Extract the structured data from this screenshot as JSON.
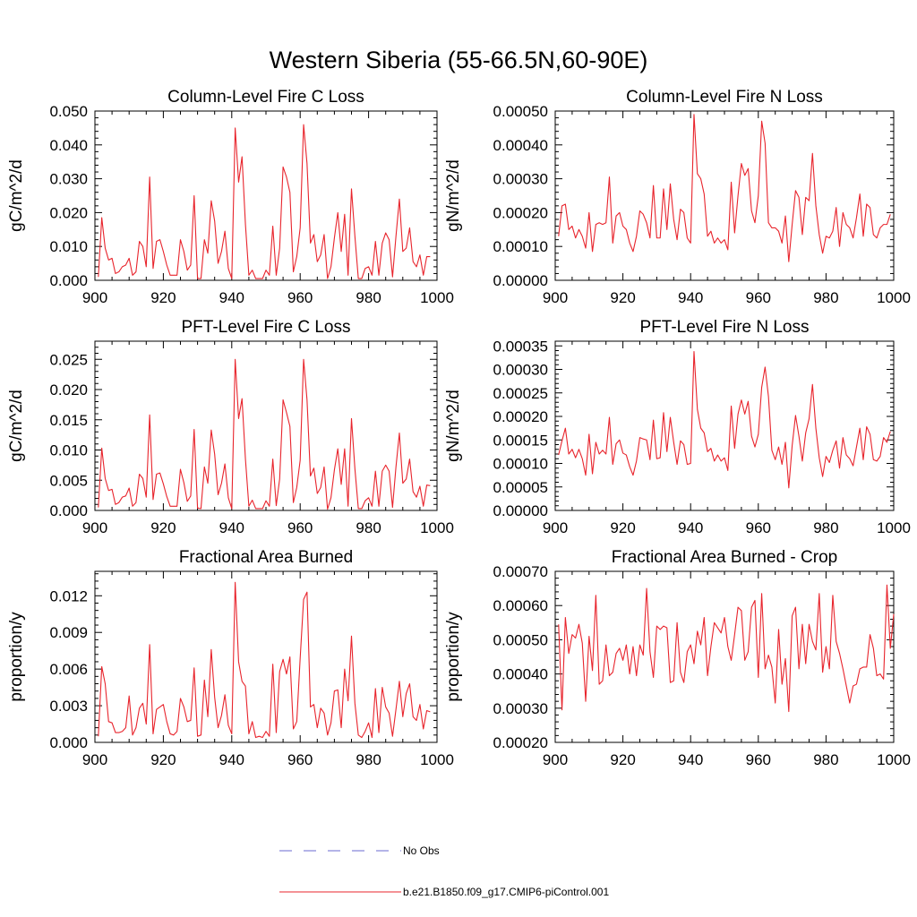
{
  "figure": {
    "title": "Western Siberia (55-66.5N,60-90E)"
  },
  "legend": {
    "items": [
      {
        "label": "No Obs",
        "color": "#6a6ad0",
        "dash": true
      },
      {
        "label": "b.e21.B1850.f09_g17.CMIP6-piControl.001",
        "color": "#e8242c",
        "dash": false
      }
    ]
  },
  "chart_data": [
    {
      "type": "line",
      "title": "Column-Level Fire C Loss",
      "ylabel": "gC/m^2/d",
      "xlim": [
        900,
        1000
      ],
      "ylim": [
        0,
        0.05
      ],
      "xticks": [
        900,
        920,
        940,
        960,
        980,
        1000
      ],
      "yticks": [
        "0.000",
        "0.010",
        "0.020",
        "0.030",
        "0.040",
        "0.050"
      ],
      "yticks_values": [
        0,
        0.01,
        0.02,
        0.03,
        0.04,
        0.05
      ],
      "x0": 901,
      "series": [
        {
          "name": "b.e21.B1850.f09_g17.CMIP6-piControl.001",
          "color": "#e8242c",
          "values": [
            0.001,
            0.0185,
            0.0095,
            0.006,
            0.0065,
            0.002,
            0.0025,
            0.004,
            0.0045,
            0.0065,
            0.0015,
            0.0025,
            0.0115,
            0.01,
            0.004,
            0.0305,
            0.0035,
            0.0115,
            0.012,
            0.0085,
            0.0045,
            0.0015,
            0.0015,
            0.0015,
            0.012,
            0.0085,
            0.003,
            0.0045,
            0.025,
            0.0005,
            0.0005,
            0.012,
            0.008,
            0.0235,
            0.0175,
            0.005,
            0.0085,
            0.0145,
            0.0035,
            0.0005,
            0.045,
            0.029,
            0.0365,
            0.0165,
            0.0015,
            0.003,
            0.0005,
            0.0005,
            0.0005,
            0.003,
            0.0015,
            0.016,
            0.0015,
            0.0095,
            0.0335,
            0.0305,
            0.026,
            0.0025,
            0.007,
            0.0155,
            0.046,
            0.0345,
            0.011,
            0.0135,
            0.0055,
            0.0075,
            0.0135,
            0.0005,
            0.004,
            0.0125,
            0.02,
            0.0085,
            0.0195,
            0.0015,
            0.027,
            0.013,
            0.0005,
            0.0005,
            0.0035,
            0.004,
            0.0015,
            0.0115,
            0.0015,
            0.011,
            0.014,
            0.012,
            0.001,
            0.013,
            0.024,
            0.0085,
            0.0095,
            0.0155,
            0.0055,
            0.004,
            0.0075,
            0.0015,
            0.007,
            0.007
          ]
        }
      ]
    },
    {
      "type": "line",
      "title": "Column-Level Fire N Loss",
      "ylabel": "gN/m^2/d",
      "xlim": [
        900,
        1000
      ],
      "ylim": [
        0,
        0.0005
      ],
      "xticks": [
        900,
        920,
        940,
        960,
        980,
        1000
      ],
      "yticks": [
        "0.00000",
        "0.00010",
        "0.00020",
        "0.00030",
        "0.00040",
        "0.00050"
      ],
      "yticks_values": [
        0,
        0.0001,
        0.0002,
        0.0003,
        0.0004,
        0.0005
      ],
      "x0": 901,
      "series": [
        {
          "name": "b.e21.B1850.f09_g17.CMIP6-piControl.001",
          "color": "#e8242c",
          "values": [
            0.00013,
            0.00022,
            0.000225,
            0.00015,
            0.00016,
            0.000125,
            0.00015,
            0.00013,
            9.5e-05,
            0.0002,
            8.5e-05,
            0.000165,
            0.00017,
            0.000165,
            0.00017,
            0.000305,
            0.00011,
            0.00019,
            0.0002,
            0.00016,
            0.00015,
            0.00011,
            8.5e-05,
            0.00013,
            0.000205,
            0.000195,
            0.00017,
            0.000125,
            0.00028,
            0.000125,
            0.000125,
            0.00027,
            0.00015,
            0.000285,
            0.00018,
            0.00012,
            0.00021,
            0.0002,
            0.000125,
            0.00011,
            0.00049,
            0.000315,
            0.0003,
            0.000255,
            0.00013,
            0.000145,
            0.00011,
            0.000125,
            0.00011,
            0.00012,
            9e-05,
            0.00029,
            0.00014,
            0.00025,
            0.000345,
            0.00031,
            0.00033,
            0.000205,
            0.00017,
            0.00025,
            0.00047,
            0.000405,
            0.00017,
            0.000155,
            0.000155,
            0.000145,
            0.00011,
            0.00019,
            5.5e-05,
            0.000165,
            0.000265,
            0.000245,
            0.000135,
            0.000245,
            0.000235,
            0.000375,
            0.00022,
            0.000135,
            8e-05,
            0.00013,
            0.000125,
            0.000145,
            0.000215,
            0.0001,
            0.0002,
            0.000165,
            0.000155,
            0.000125,
            0.000185,
            0.000255,
            0.00013,
            0.000225,
            0.000215,
            0.000135,
            0.000125,
            0.000155,
            0.000165,
            0.000165,
            0.000195
          ]
        }
      ]
    },
    {
      "type": "line",
      "title": "PFT-Level Fire C Loss",
      "ylabel": "gC/m^2/d",
      "xlim": [
        900,
        1000
      ],
      "ylim": [
        0,
        0.028
      ],
      "xticks": [
        900,
        920,
        940,
        960,
        980,
        1000
      ],
      "yticks": [
        "0.000",
        "0.005",
        "0.010",
        "0.015",
        "0.020",
        "0.025"
      ],
      "yticks_values": [
        0,
        0.005,
        0.01,
        0.015,
        0.02,
        0.025
      ],
      "x0": 901,
      "series": [
        {
          "name": "b.e21.B1850.f09_g17.CMIP6-piControl.001",
          "color": "#e8242c",
          "values": [
            0.0005,
            0.0103,
            0.0053,
            0.0033,
            0.0035,
            0.001,
            0.0013,
            0.0022,
            0.0024,
            0.0037,
            0.0007,
            0.0013,
            0.006,
            0.0053,
            0.0022,
            0.0158,
            0.0018,
            0.006,
            0.0062,
            0.0044,
            0.0023,
            0.0007,
            0.0007,
            0.0007,
            0.0068,
            0.0046,
            0.0015,
            0.0024,
            0.0134,
            0.0004,
            0.0003,
            0.0072,
            0.0045,
            0.0133,
            0.0093,
            0.0026,
            0.0045,
            0.0077,
            0.0021,
            0.0003,
            0.025,
            0.0152,
            0.0185,
            0.0085,
            0.0007,
            0.0017,
            0.0003,
            0.0003,
            0.0003,
            0.0016,
            0.0007,
            0.0085,
            0.0008,
            0.0052,
            0.0183,
            0.0162,
            0.0139,
            0.0013,
            0.0038,
            0.0083,
            0.025,
            0.0183,
            0.0057,
            0.007,
            0.0028,
            0.0038,
            0.0072,
            0.0002,
            0.0021,
            0.0067,
            0.0102,
            0.0043,
            0.0102,
            0.0007,
            0.0152,
            0.0069,
            0.0003,
            0.0003,
            0.0016,
            0.0021,
            0.0007,
            0.0065,
            0.0007,
            0.0065,
            0.0075,
            0.0065,
            0.0005,
            0.0072,
            0.0128,
            0.0045,
            0.0052,
            0.0085,
            0.0031,
            0.0022,
            0.004,
            0.0007,
            0.0042,
            0.0041
          ]
        }
      ]
    },
    {
      "type": "line",
      "title": "PFT-Level Fire N Loss",
      "ylabel": "gN/m^2/d",
      "xlim": [
        900,
        1000
      ],
      "ylim": [
        0,
        0.00036
      ],
      "xticks": [
        900,
        920,
        940,
        960,
        980,
        1000
      ],
      "yticks": [
        "0.00000",
        "0.00005",
        "0.00010",
        "0.00015",
        "0.00020",
        "0.00025",
        "0.00030",
        "0.00035"
      ],
      "yticks_values": [
        0,
        5e-05,
        0.0001,
        0.00015,
        0.0002,
        0.00025,
        0.0003,
        0.00035
      ],
      "x0": 901,
      "series": [
        {
          "name": "b.e21.B1850.f09_g17.CMIP6-piControl.001",
          "color": "#e8242c",
          "values": [
            0.000118,
            0.000148,
            0.000175,
            0.00012,
            0.00013,
            0.000112,
            0.00013,
            0.00011,
            7.5e-05,
            0.000162,
            7.8e-05,
            0.000145,
            0.00012,
            0.000128,
            0.00012,
            0.000198,
            9.8e-05,
            0.000142,
            0.00015,
            0.000122,
            0.000118,
            9.3e-05,
            7.5e-05,
            0.000105,
            0.000155,
            0.000152,
            0.00015,
            0.000108,
            0.000192,
            0.00011,
            0.000112,
            0.000208,
            0.000125,
            0.000198,
            0.000145,
            9.8e-05,
            0.000148,
            0.00014,
            9.8e-05,
            0.0001,
            0.000338,
            0.000215,
            0.000175,
            0.000165,
            0.000125,
            0.000132,
            0.000105,
            0.000118,
            0.000105,
            0.000112,
            8.5e-05,
            0.000222,
            0.000132,
            0.000205,
            0.000235,
            0.000205,
            0.000232,
            0.000158,
            0.000135,
            0.000162,
            0.000262,
            0.000305,
            0.000242,
            0.000128,
            0.000108,
            0.000135,
            9.8e-05,
            0.000145,
            4.8e-05,
            0.000138,
            0.000202,
            0.000158,
            0.000105,
            0.000165,
            0.000195,
            0.000268,
            0.000175,
            0.000112,
            7.2e-05,
            0.000115,
            0.000102,
            0.000128,
            0.000148,
            9e-05,
            0.000155,
            0.000118,
            0.00011,
            9.5e-05,
            0.000135,
            0.000175,
            0.000108,
            0.000178,
            0.000162,
            0.000108,
            0.000105,
            0.000115,
            0.000155,
            0.000145,
            0.000168
          ]
        }
      ]
    },
    {
      "type": "line",
      "title": "Fractional Area Burned",
      "ylabel": "proportion/y",
      "xlim": [
        900,
        1000
      ],
      "ylim": [
        0,
        0.014
      ],
      "xticks": [
        900,
        920,
        940,
        960,
        980,
        1000
      ],
      "yticks": [
        "0.000",
        "0.003",
        "0.006",
        "0.009",
        "0.012"
      ],
      "yticks_values": [
        0,
        0.003,
        0.006,
        0.009,
        0.012
      ],
      "x0": 901,
      "series": [
        {
          "name": "b.e21.B1850.f09_g17.CMIP6-piControl.001",
          "color": "#e8242c",
          "values": [
            0.0005,
            0.0062,
            0.0048,
            0.0017,
            0.0016,
            0.0008,
            0.0008,
            0.0009,
            0.0012,
            0.0038,
            0.0006,
            0.0012,
            0.0028,
            0.0032,
            0.0015,
            0.008,
            0.0007,
            0.0027,
            0.0029,
            0.0031,
            0.0017,
            0.0007,
            0.0006,
            0.0009,
            0.0036,
            0.0029,
            0.0017,
            0.0018,
            0.0061,
            0.0005,
            0.0006,
            0.0051,
            0.0021,
            0.0076,
            0.0037,
            0.0012,
            0.0022,
            0.0039,
            0.0014,
            0.0007,
            0.0131,
            0.0066,
            0.005,
            0.0046,
            0.0007,
            0.0017,
            0.0004,
            0.0005,
            0.0004,
            0.0009,
            0.0005,
            0.0064,
            0.0008,
            0.0058,
            0.0068,
            0.0056,
            0.007,
            0.0011,
            0.0017,
            0.0069,
            0.0117,
            0.0123,
            0.0029,
            0.0031,
            0.0012,
            0.0028,
            0.0024,
            0.0006,
            0.0016,
            0.0042,
            0.0043,
            0.0012,
            0.006,
            0.0034,
            0.0087,
            0.0032,
            0.0006,
            0.0004,
            0.0009,
            0.0016,
            0.0004,
            0.0044,
            0.0008,
            0.0045,
            0.0029,
            0.0024,
            0.0005,
            0.0027,
            0.005,
            0.0021,
            0.004,
            0.0048,
            0.0021,
            0.0018,
            0.0031,
            0.0011,
            0.0026,
            0.0025
          ]
        }
      ]
    },
    {
      "type": "line",
      "title": "Fractional Area Burned - Crop",
      "ylabel": "proportion/y",
      "xlim": [
        900,
        1000
      ],
      "ylim": [
        0.0002,
        0.0007
      ],
      "xticks": [
        900,
        920,
        940,
        960,
        980,
        1000
      ],
      "yticks": [
        "0.00020",
        "0.00030",
        "0.00040",
        "0.00050",
        "0.00060",
        "0.00070"
      ],
      "yticks_values": [
        0.0002,
        0.0003,
        0.0004,
        0.0005,
        0.0006,
        0.0007
      ],
      "x0": 901,
      "series": [
        {
          "name": "b.e21.B1850.f09_g17.CMIP6-piControl.001",
          "color": "#e8242c",
          "values": [
            0.000545,
            0.000295,
            0.000565,
            0.00046,
            0.000515,
            0.000505,
            0.000545,
            0.00049,
            0.00032,
            0.00051,
            0.00041,
            0.00063,
            0.00037,
            0.00038,
            0.000485,
            0.000395,
            0.000405,
            0.00046,
            0.000475,
            0.00044,
            0.000485,
            0.0004,
            0.00048,
            0.000395,
            0.000485,
            0.000455,
            0.00065,
            0.000465,
            0.00039,
            0.00054,
            0.00053,
            0.00054,
            0.000535,
            0.000375,
            0.00038,
            0.00055,
            0.000405,
            0.000375,
            0.000465,
            0.000485,
            0.00043,
            0.000525,
            0.000485,
            0.000565,
            0.000395,
            0.00048,
            0.00055,
            0.000535,
            0.00052,
            0.000565,
            0.00048,
            0.00044,
            0.000515,
            0.000595,
            0.000585,
            0.00044,
            0.000465,
            0.000595,
            0.000615,
            0.00039,
            0.000635,
            0.000415,
            0.000455,
            0.00042,
            0.000315,
            0.00053,
            0.00037,
            0.000445,
            0.00029,
            0.00057,
            0.000595,
            0.000415,
            0.000545,
            0.00043,
            0.000545,
            0.000495,
            0.00047,
            0.000635,
            0.000405,
            0.00048,
            0.000415,
            0.00063,
            0.000495,
            0.00046,
            0.000415,
            0.000365,
            0.000315,
            0.000365,
            0.00037,
            0.000415,
            0.00042,
            0.00042,
            0.000515,
            0.000475,
            0.000395,
            0.0004,
            0.000385,
            0.00066,
            0.000475,
            0.000575
          ]
        }
      ]
    }
  ]
}
